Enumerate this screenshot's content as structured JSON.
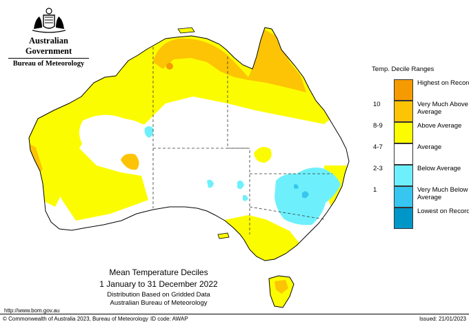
{
  "header": {
    "government": "Australian Government",
    "bureau": "Bureau of Meteorology",
    "crest_icon": "coat-of-arms-icon"
  },
  "legend": {
    "title": "Temp. Decile Ranges",
    "items": [
      {
        "key": "",
        "label": "Highest on Record",
        "color": "#f59a00"
      },
      {
        "key": "10",
        "label": "Very Much Above Average",
        "color": "#fcc404"
      },
      {
        "key": "8-9",
        "label": "Above Average",
        "color": "#fcfc00"
      },
      {
        "key": "4-7",
        "label": "Average",
        "color": "#ffffff"
      },
      {
        "key": "2-3",
        "label": "Below Average",
        "color": "#6ef0fc"
      },
      {
        "key": "1",
        "label": "Very Much Below Average",
        "color": "#36c6f0"
      },
      {
        "key": "",
        "label": "Lowest on Record",
        "color": "#0096c8"
      }
    ]
  },
  "caption": {
    "title": "Mean Temperature Deciles",
    "period": "1 January to 31 December 2022",
    "method": "Distribution Based on Gridded Data",
    "source": "Australian Bureau of Meteorology"
  },
  "footer": {
    "url": "http://www.bom.gov.au",
    "copyright": "© Commonwealth of Australia 2023, Bureau of Meteorology",
    "id_code": "ID code: AWAP",
    "issued": "Issued: 21/01/2023"
  }
}
